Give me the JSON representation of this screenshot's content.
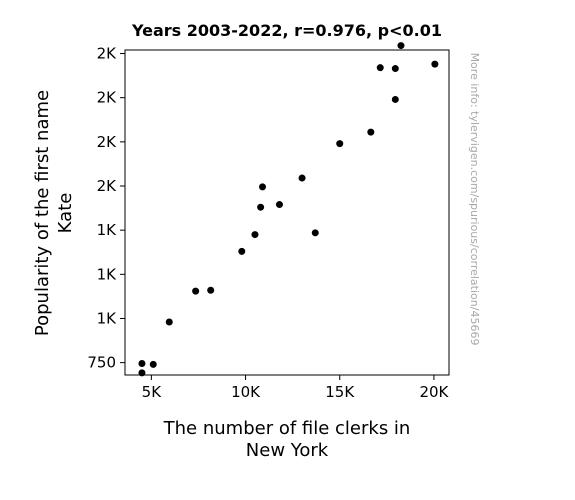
{
  "chart_data": {
    "type": "scatter",
    "title": "Years 2003-2022, r=0.976, p<0.01",
    "xlabel": [
      "The number of file clerks in",
      "New York"
    ],
    "ylabel": [
      "Popularity of the first name",
      "Kate"
    ],
    "watermark": "More info: tylervigen.com/spurious/correlation/45669",
    "xlim": [
      3600,
      20800
    ],
    "ylim": [
      680,
      2520
    ],
    "x_ticks": [
      {
        "value": 5000,
        "label": "5K"
      },
      {
        "value": 10000,
        "label": "10K"
      },
      {
        "value": 15000,
        "label": "15K"
      },
      {
        "value": 20000,
        "label": "20K"
      }
    ],
    "y_ticks": [
      {
        "value": 750,
        "label": "750"
      },
      {
        "value": 1000,
        "label": "1K"
      },
      {
        "value": 1250,
        "label": "1K"
      },
      {
        "value": 1500,
        "label": "1K"
      },
      {
        "value": 1750,
        "label": "2K"
      },
      {
        "value": 2000,
        "label": "2K"
      },
      {
        "value": 2250,
        "label": "2K"
      },
      {
        "value": 2500,
        "label": "2K"
      }
    ],
    "grid": false,
    "marker_color": "#000000",
    "points": [
      {
        "x": 4500,
        "y": 745
      },
      {
        "x": 4500,
        "y": 692
      },
      {
        "x": 5100,
        "y": 740
      },
      {
        "x": 5950,
        "y": 980
      },
      {
        "x": 7350,
        "y": 1155
      },
      {
        "x": 8150,
        "y": 1160
      },
      {
        "x": 9800,
        "y": 1380
      },
      {
        "x": 10500,
        "y": 1475
      },
      {
        "x": 10800,
        "y": 1630
      },
      {
        "x": 10900,
        "y": 1745
      },
      {
        "x": 11800,
        "y": 1645
      },
      {
        "x": 13000,
        "y": 1795
      },
      {
        "x": 13700,
        "y": 1485
      },
      {
        "x": 15000,
        "y": 1990
      },
      {
        "x": 16650,
        "y": 2055
      },
      {
        "x": 17150,
        "y": 2420
      },
      {
        "x": 17950,
        "y": 2415
      },
      {
        "x": 17950,
        "y": 2240
      },
      {
        "x": 18250,
        "y": 2545
      },
      {
        "x": 20050,
        "y": 2440
      }
    ]
  }
}
